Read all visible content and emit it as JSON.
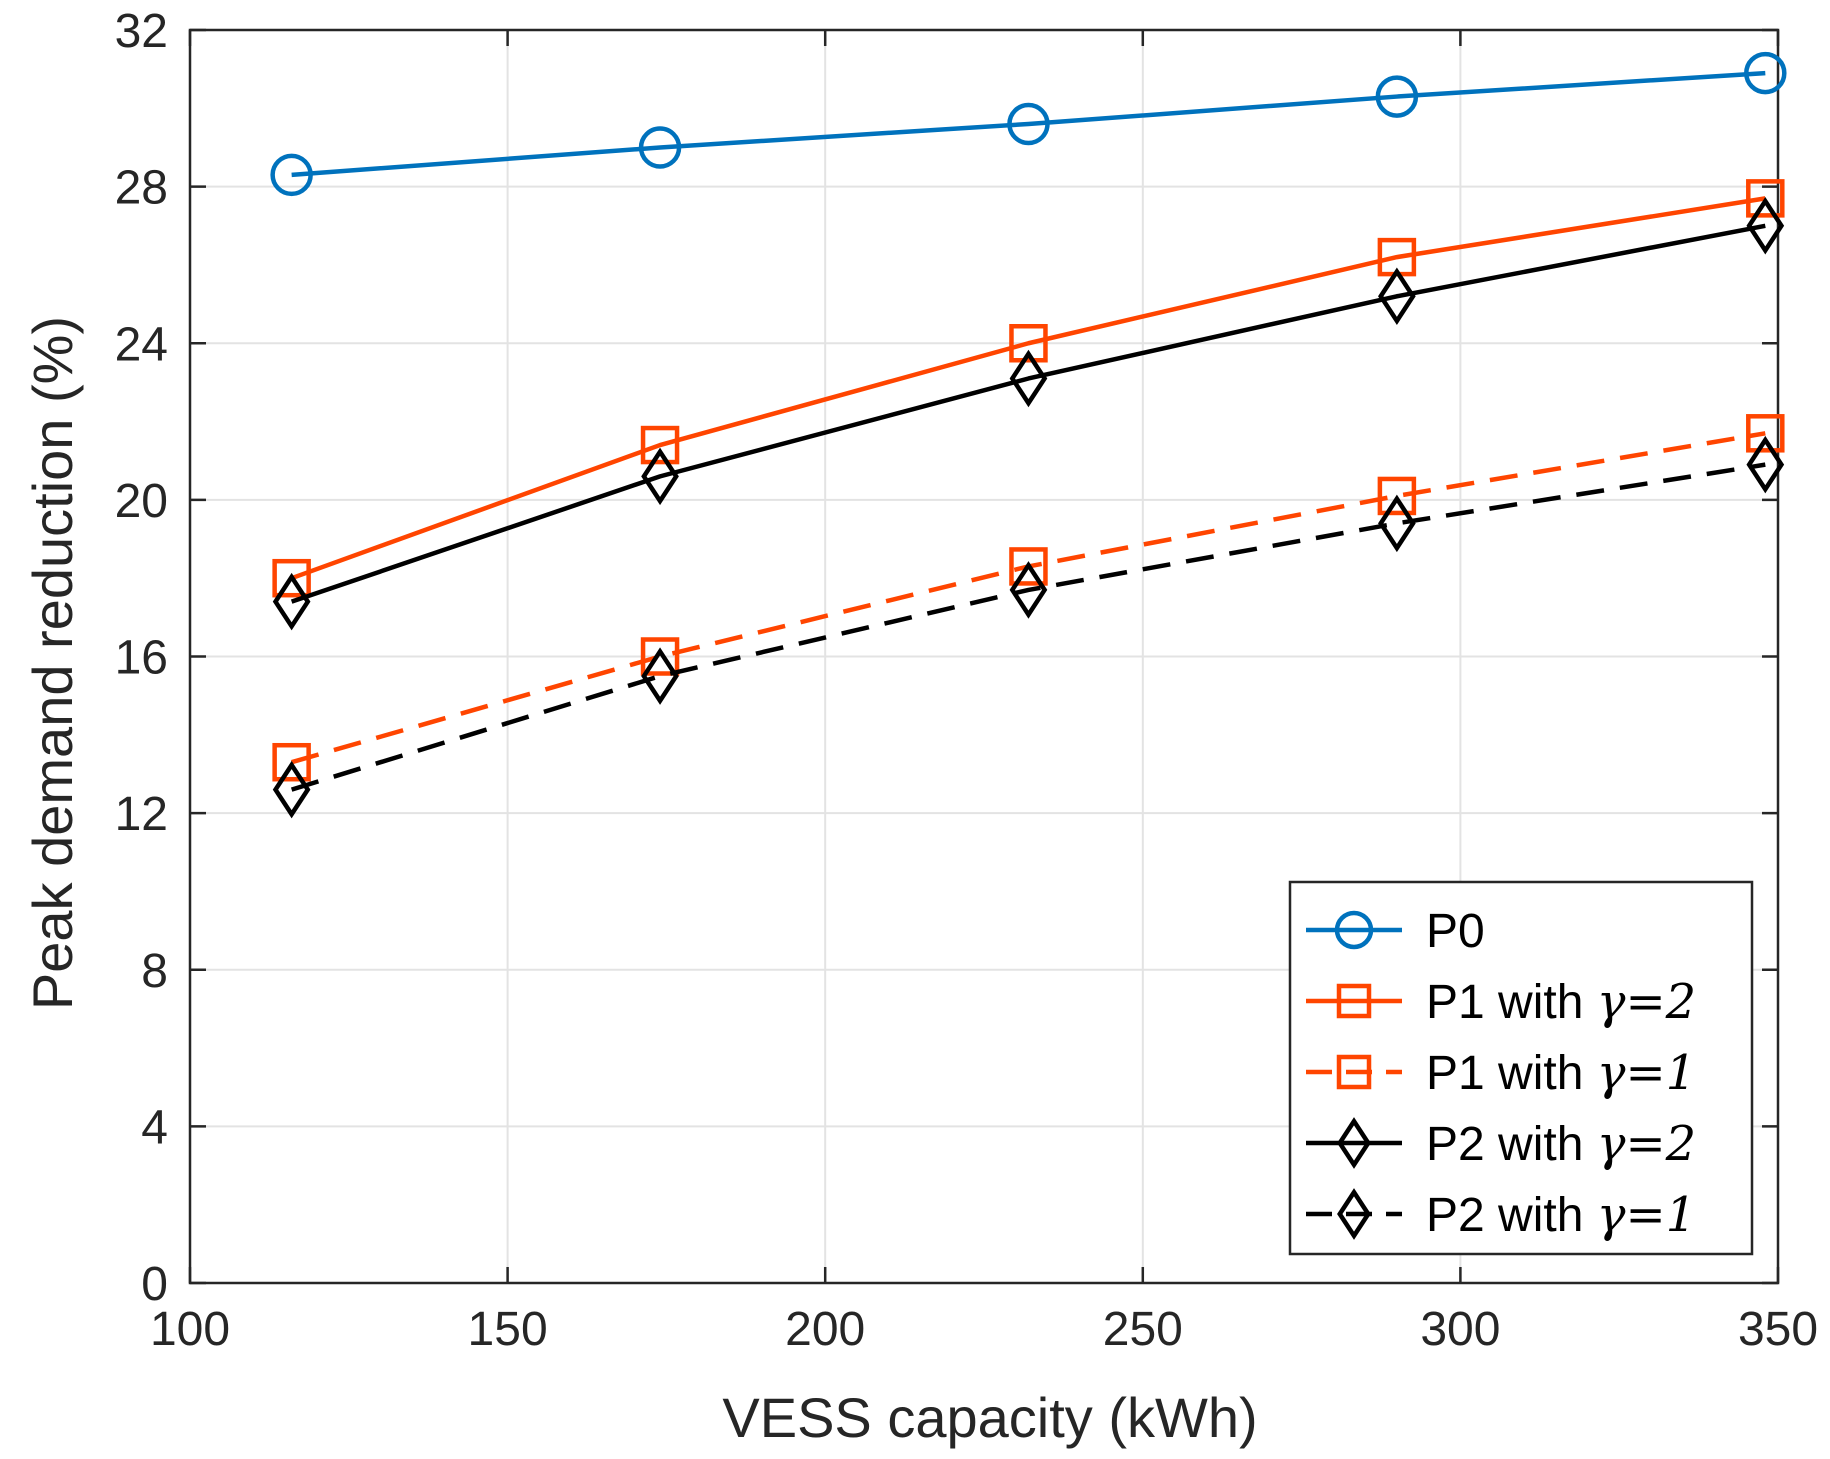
{
  "chart_data": {
    "type": "line",
    "title": "",
    "xlabel": "VESS capacity (kWh)",
    "ylabel": "Peak demand reduction (%)",
    "xlim": [
      100,
      350
    ],
    "ylim": [
      0,
      32
    ],
    "xticks": [
      100,
      150,
      200,
      250,
      300,
      350
    ],
    "yticks": [
      0,
      4,
      8,
      12,
      16,
      20,
      24,
      28,
      32
    ],
    "grid": true,
    "legend_position": "bottom-right",
    "x": [
      116,
      174,
      232,
      290,
      348
    ],
    "series": [
      {
        "name": "P0",
        "label_prefix": "P0",
        "gamma": "",
        "color": "#0072BD",
        "marker": "circle",
        "dashed": false,
        "values": [
          28.3,
          29.0,
          29.6,
          30.3,
          30.9
        ]
      },
      {
        "name": "P1 with γ=2",
        "label_prefix": "P1 with ",
        "gamma": "γ=2",
        "color": "#FF4500",
        "marker": "square",
        "dashed": false,
        "values": [
          18.0,
          21.4,
          24.0,
          26.2,
          27.7
        ]
      },
      {
        "name": "P1 with γ=1",
        "label_prefix": "P1 with ",
        "gamma": "γ=1",
        "color": "#FF4500",
        "marker": "square",
        "dashed": true,
        "values": [
          13.3,
          16.0,
          18.3,
          20.1,
          21.7
        ]
      },
      {
        "name": "P2 with γ=2",
        "label_prefix": "P2 with ",
        "gamma": "γ=2",
        "color": "#000000",
        "marker": "diamond",
        "dashed": false,
        "values": [
          17.4,
          20.6,
          23.1,
          25.2,
          27.0
        ]
      },
      {
        "name": "P2 with γ=1",
        "label_prefix": "P2 with ",
        "gamma": "γ=1",
        "color": "#000000",
        "marker": "diamond",
        "dashed": true,
        "values": [
          12.6,
          15.5,
          17.7,
          19.4,
          20.9
        ]
      }
    ]
  }
}
